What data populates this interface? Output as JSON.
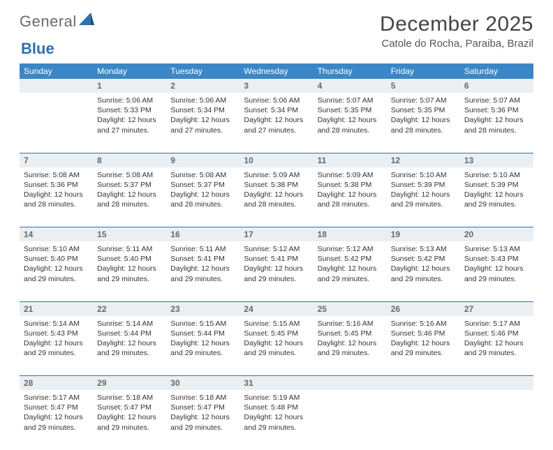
{
  "brand": {
    "part1": "General",
    "part2": "Blue"
  },
  "header": {
    "title": "December 2025",
    "location": "Catole do Rocha, Paraiba, Brazil"
  },
  "columns": [
    "Sunday",
    "Monday",
    "Tuesday",
    "Wednesday",
    "Thursday",
    "Friday",
    "Saturday"
  ],
  "colors": {
    "header_bg": "#3b86c6",
    "daynum_bg": "#eceff1",
    "rule": "#2f6fb0"
  },
  "weeks": [
    {
      "nums": [
        "",
        "1",
        "2",
        "3",
        "4",
        "5",
        "6"
      ],
      "cells": [
        null,
        {
          "sunrise": "5:06 AM",
          "sunset": "5:33 PM",
          "daylight": "12 hours and 27 minutes."
        },
        {
          "sunrise": "5:06 AM",
          "sunset": "5:34 PM",
          "daylight": "12 hours and 27 minutes."
        },
        {
          "sunrise": "5:06 AM",
          "sunset": "5:34 PM",
          "daylight": "12 hours and 27 minutes."
        },
        {
          "sunrise": "5:07 AM",
          "sunset": "5:35 PM",
          "daylight": "12 hours and 28 minutes."
        },
        {
          "sunrise": "5:07 AM",
          "sunset": "5:35 PM",
          "daylight": "12 hours and 28 minutes."
        },
        {
          "sunrise": "5:07 AM",
          "sunset": "5:36 PM",
          "daylight": "12 hours and 28 minutes."
        }
      ]
    },
    {
      "nums": [
        "7",
        "8",
        "9",
        "10",
        "11",
        "12",
        "13"
      ],
      "cells": [
        {
          "sunrise": "5:08 AM",
          "sunset": "5:36 PM",
          "daylight": "12 hours and 28 minutes."
        },
        {
          "sunrise": "5:08 AM",
          "sunset": "5:37 PM",
          "daylight": "12 hours and 28 minutes."
        },
        {
          "sunrise": "5:08 AM",
          "sunset": "5:37 PM",
          "daylight": "12 hours and 28 minutes."
        },
        {
          "sunrise": "5:09 AM",
          "sunset": "5:38 PM",
          "daylight": "12 hours and 28 minutes."
        },
        {
          "sunrise": "5:09 AM",
          "sunset": "5:38 PM",
          "daylight": "12 hours and 28 minutes."
        },
        {
          "sunrise": "5:10 AM",
          "sunset": "5:39 PM",
          "daylight": "12 hours and 29 minutes."
        },
        {
          "sunrise": "5:10 AM",
          "sunset": "5:39 PM",
          "daylight": "12 hours and 29 minutes."
        }
      ]
    },
    {
      "nums": [
        "14",
        "15",
        "16",
        "17",
        "18",
        "19",
        "20"
      ],
      "cells": [
        {
          "sunrise": "5:10 AM",
          "sunset": "5:40 PM",
          "daylight": "12 hours and 29 minutes."
        },
        {
          "sunrise": "5:11 AM",
          "sunset": "5:40 PM",
          "daylight": "12 hours and 29 minutes."
        },
        {
          "sunrise": "5:11 AM",
          "sunset": "5:41 PM",
          "daylight": "12 hours and 29 minutes."
        },
        {
          "sunrise": "5:12 AM",
          "sunset": "5:41 PM",
          "daylight": "12 hours and 29 minutes."
        },
        {
          "sunrise": "5:12 AM",
          "sunset": "5:42 PM",
          "daylight": "12 hours and 29 minutes."
        },
        {
          "sunrise": "5:13 AM",
          "sunset": "5:42 PM",
          "daylight": "12 hours and 29 minutes."
        },
        {
          "sunrise": "5:13 AM",
          "sunset": "5:43 PM",
          "daylight": "12 hours and 29 minutes."
        }
      ]
    },
    {
      "nums": [
        "21",
        "22",
        "23",
        "24",
        "25",
        "26",
        "27"
      ],
      "cells": [
        {
          "sunrise": "5:14 AM",
          "sunset": "5:43 PM",
          "daylight": "12 hours and 29 minutes."
        },
        {
          "sunrise": "5:14 AM",
          "sunset": "5:44 PM",
          "daylight": "12 hours and 29 minutes."
        },
        {
          "sunrise": "5:15 AM",
          "sunset": "5:44 PM",
          "daylight": "12 hours and 29 minutes."
        },
        {
          "sunrise": "5:15 AM",
          "sunset": "5:45 PM",
          "daylight": "12 hours and 29 minutes."
        },
        {
          "sunrise": "5:16 AM",
          "sunset": "5:45 PM",
          "daylight": "12 hours and 29 minutes."
        },
        {
          "sunrise": "5:16 AM",
          "sunset": "5:46 PM",
          "daylight": "12 hours and 29 minutes."
        },
        {
          "sunrise": "5:17 AM",
          "sunset": "5:46 PM",
          "daylight": "12 hours and 29 minutes."
        }
      ]
    },
    {
      "nums": [
        "28",
        "29",
        "30",
        "31",
        "",
        "",
        ""
      ],
      "cells": [
        {
          "sunrise": "5:17 AM",
          "sunset": "5:47 PM",
          "daylight": "12 hours and 29 minutes."
        },
        {
          "sunrise": "5:18 AM",
          "sunset": "5:47 PM",
          "daylight": "12 hours and 29 minutes."
        },
        {
          "sunrise": "5:18 AM",
          "sunset": "5:47 PM",
          "daylight": "12 hours and 29 minutes."
        },
        {
          "sunrise": "5:19 AM",
          "sunset": "5:48 PM",
          "daylight": "12 hours and 29 minutes."
        },
        null,
        null,
        null
      ]
    }
  ],
  "labels": {
    "sunrise": "Sunrise:",
    "sunset": "Sunset:",
    "daylight": "Daylight:"
  }
}
